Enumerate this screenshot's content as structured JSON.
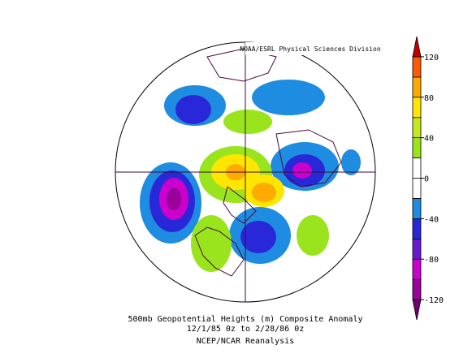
{
  "credit": "NOAA/ESRL Physical Sciences Division",
  "caption": [
    "500mb Geopotential Heights (m)   Composite Anomaly",
    "12/1/85 0z  to 2/28/86 0z",
    "NCEP/NCAR Reanalysis"
  ],
  "colorbar": {
    "levels": [
      -140,
      -120,
      -100,
      -80,
      -60,
      -40,
      -20,
      0,
      20,
      40,
      60,
      80,
      100,
      120,
      140
    ],
    "colors": [
      "#6e0070",
      "#9a009a",
      "#cc00cc",
      "#6a1ad0",
      "#2828d8",
      "#1e8ce0",
      "#ffffff",
      "#ffffff",
      "#99e41c",
      "#c8e81e",
      "#ffe600",
      "#ffaa00",
      "#ff5a00",
      "#c00000"
    ],
    "ticks": [
      120,
      80,
      40,
      0,
      -40,
      -80,
      -120
    ]
  }
}
